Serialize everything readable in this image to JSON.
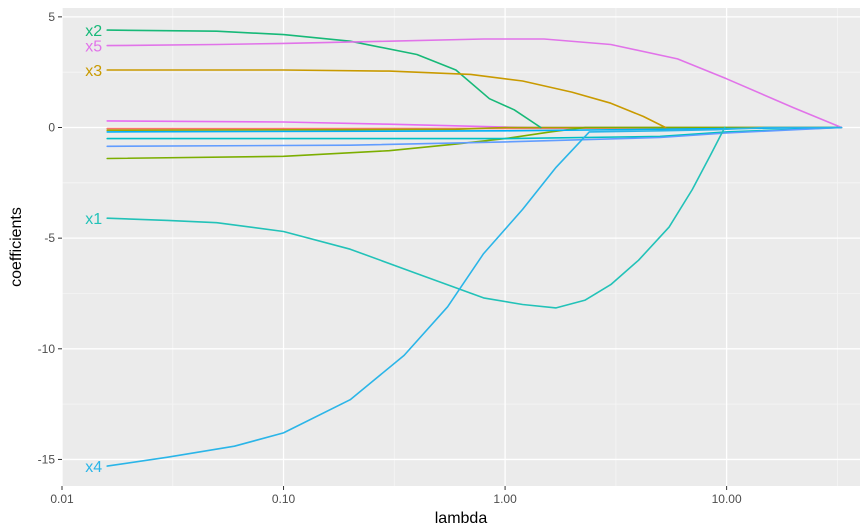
{
  "chart_data": {
    "type": "line",
    "xlabel": "lambda",
    "ylabel": "coefficients",
    "x_scale": "log10",
    "xlim": [
      0.01,
      40
    ],
    "ylim": [
      -16.2,
      5.4
    ],
    "x_ticks": [
      {
        "value": 0.01,
        "label": "0.01"
      },
      {
        "value": 0.1,
        "label": "0.10"
      },
      {
        "value": 1,
        "label": "1.00"
      },
      {
        "value": 10,
        "label": "10.00"
      }
    ],
    "y_ticks": [
      {
        "value": 5,
        "label": "5"
      },
      {
        "value": 0,
        "label": "0"
      },
      {
        "value": -5,
        "label": "-5"
      },
      {
        "value": -10,
        "label": "-10"
      },
      {
        "value": -15,
        "label": "-15"
      }
    ],
    "grid": true,
    "background": "#ebebeb",
    "series": [
      {
        "name": "x2",
        "color": "#17b978",
        "points": [
          [
            0.016,
            4.4
          ],
          [
            0.05,
            4.35
          ],
          [
            0.1,
            4.2
          ],
          [
            0.2,
            3.9
          ],
          [
            0.4,
            3.3
          ],
          [
            0.6,
            2.6
          ],
          [
            0.85,
            1.3
          ],
          [
            1.1,
            0.8
          ],
          [
            1.45,
            0
          ]
        ]
      },
      {
        "name": "x5",
        "color": "#e173e9",
        "points": [
          [
            0.016,
            3.7
          ],
          [
            0.05,
            3.75
          ],
          [
            0.1,
            3.8
          ],
          [
            0.3,
            3.9
          ],
          [
            0.8,
            4.0
          ],
          [
            1.5,
            4.0
          ],
          [
            3,
            3.75
          ],
          [
            6,
            3.1
          ],
          [
            10,
            2.2
          ],
          [
            20,
            0.9
          ],
          [
            33,
            0
          ]
        ]
      },
      {
        "name": "x3",
        "color": "#c99a00",
        "points": [
          [
            0.016,
            2.6
          ],
          [
            0.1,
            2.6
          ],
          [
            0.3,
            2.55
          ],
          [
            0.7,
            2.4
          ],
          [
            1.2,
            2.1
          ],
          [
            2,
            1.6
          ],
          [
            3,
            1.1
          ],
          [
            4.2,
            0.5
          ],
          [
            5.3,
            0
          ]
        ]
      },
      {
        "name": "x1",
        "color": "#22c2b8",
        "points": [
          [
            0.016,
            -4.1
          ],
          [
            0.03,
            -4.2
          ],
          [
            0.05,
            -4.3
          ],
          [
            0.1,
            -4.7
          ],
          [
            0.2,
            -5.5
          ],
          [
            0.4,
            -6.6
          ],
          [
            0.8,
            -7.7
          ],
          [
            1.2,
            -8.0
          ],
          [
            1.7,
            -8.15
          ],
          [
            2.3,
            -7.8
          ],
          [
            3,
            -7.1
          ],
          [
            4,
            -6.0
          ],
          [
            5.5,
            -4.5
          ],
          [
            7,
            -2.8
          ],
          [
            8.5,
            -1.2
          ],
          [
            9.8,
            0
          ]
        ]
      },
      {
        "name": "x4",
        "color": "#2ab5e8",
        "points": [
          [
            0.016,
            -15.3
          ],
          [
            0.03,
            -14.9
          ],
          [
            0.06,
            -14.4
          ],
          [
            0.1,
            -13.8
          ],
          [
            0.2,
            -12.3
          ],
          [
            0.35,
            -10.3
          ],
          [
            0.55,
            -8.1
          ],
          [
            0.8,
            -5.7
          ],
          [
            1.2,
            -3.7
          ],
          [
            1.7,
            -1.8
          ],
          [
            2.4,
            -0.2
          ],
          [
            5,
            -0.15
          ],
          [
            9,
            -0.1
          ],
          [
            15,
            0
          ],
          [
            33,
            0
          ]
        ]
      },
      {
        "name": "",
        "color": "#f8766d",
        "points": [
          [
            0.016,
            -0.05
          ],
          [
            1,
            -0.04
          ],
          [
            10,
            -0.02
          ],
          [
            33,
            0
          ]
        ]
      },
      {
        "name": "",
        "color": "#e76bf3",
        "points": [
          [
            0.016,
            0.3
          ],
          [
            0.1,
            0.25
          ],
          [
            0.3,
            0.15
          ],
          [
            1,
            0.02
          ],
          [
            1.4,
            0
          ],
          [
            33,
            0
          ]
        ]
      },
      {
        "name": "",
        "color": "#a3a500",
        "points": [
          [
            0.016,
            -0.12
          ],
          [
            0.2,
            -0.1
          ],
          [
            0.6,
            -0.08
          ],
          [
            1,
            0
          ],
          [
            33,
            0
          ]
        ]
      },
      {
        "name": "",
        "color": "#7cae00",
        "points": [
          [
            0.016,
            -1.4
          ],
          [
            0.1,
            -1.3
          ],
          [
            0.3,
            -1.05
          ],
          [
            0.6,
            -0.75
          ],
          [
            1,
            -0.5
          ],
          [
            1.6,
            -0.2
          ],
          [
            2.3,
            0
          ],
          [
            33,
            0
          ]
        ]
      },
      {
        "name": "",
        "color": "#00bfc4",
        "points": [
          [
            0.016,
            -0.5
          ],
          [
            1,
            -0.5
          ],
          [
            5,
            -0.4
          ],
          [
            10,
            -0.2
          ],
          [
            33,
            0
          ]
        ]
      },
      {
        "name": "",
        "color": "#619cff",
        "points": [
          [
            0.016,
            -0.85
          ],
          [
            0.2,
            -0.8
          ],
          [
            1,
            -0.65
          ],
          [
            5,
            -0.45
          ],
          [
            10,
            -0.25
          ],
          [
            33,
            0
          ]
        ]
      },
      {
        "name": "",
        "color": "#00b0f6",
        "points": [
          [
            0.016,
            -0.2
          ],
          [
            1,
            -0.15
          ],
          [
            10,
            -0.05
          ],
          [
            33,
            0
          ]
        ]
      }
    ]
  }
}
